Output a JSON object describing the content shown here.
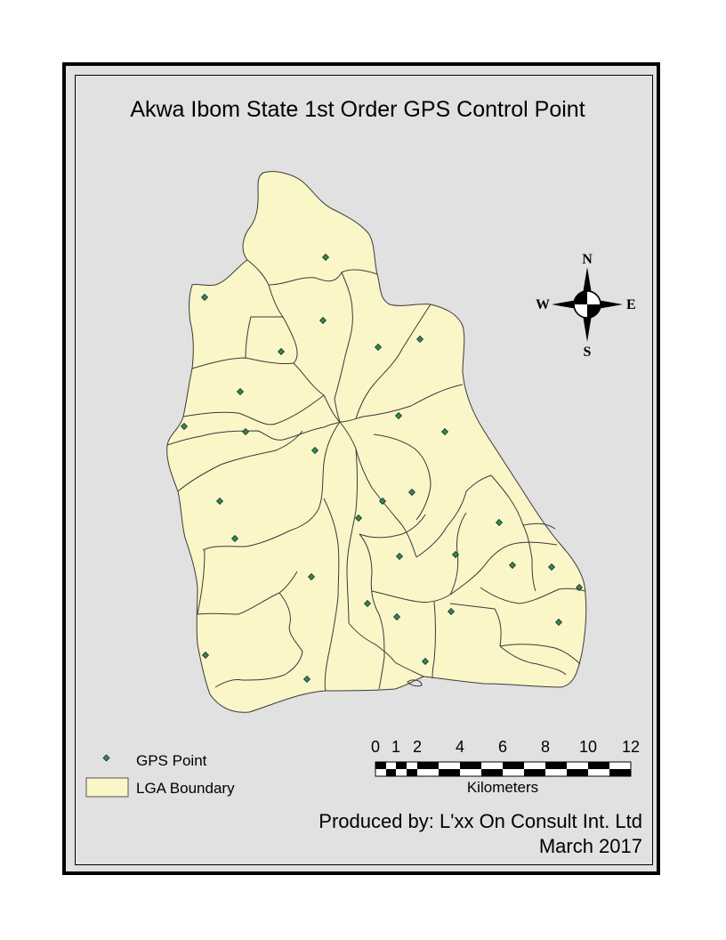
{
  "title": "Akwa Ibom State 1st Order GPS Control Point",
  "colors": {
    "lga_fill": "#fbf6c8",
    "lga_outline": "#3a3a3a",
    "gps_point": "#2e8b57",
    "background": "#e1e1e1",
    "frame": "#000000"
  },
  "north_arrow": {
    "n": "N",
    "s": "S",
    "e": "E",
    "w": "W"
  },
  "legend": {
    "items": [
      {
        "label": "GPS Point",
        "symbol": "green-diamond"
      },
      {
        "label": "LGA Boundary",
        "symbol": "yellow-rectangle"
      }
    ]
  },
  "scale_bar": {
    "ticks": [
      "0",
      "1",
      "2",
      "4",
      "6",
      "8",
      "10",
      "12"
    ],
    "units": "Kilometers"
  },
  "credits": {
    "produced_by": "Produced by: L'xx On Consult Int. Ltd",
    "date": "March 2017"
  }
}
